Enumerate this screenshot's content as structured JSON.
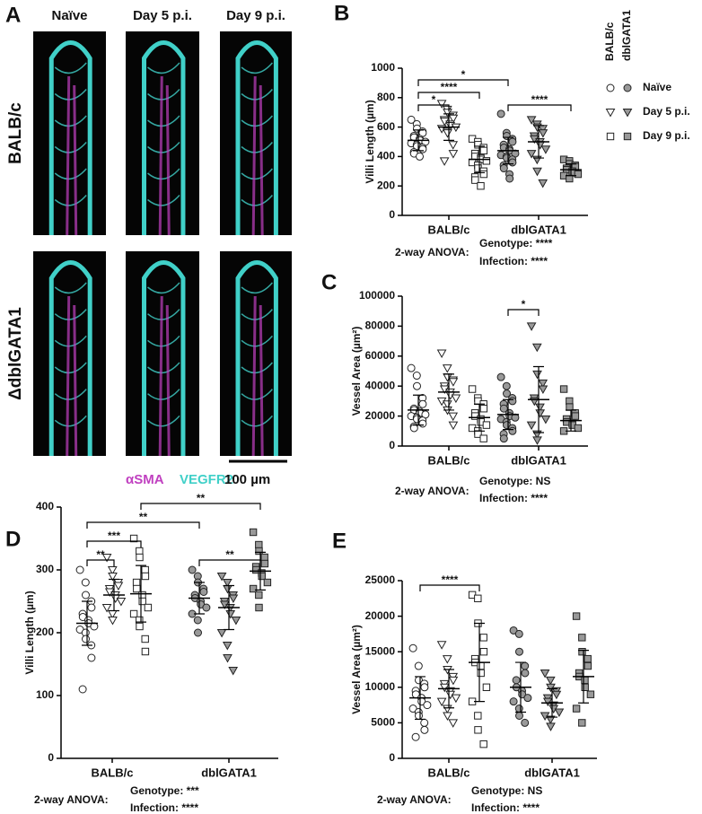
{
  "image_panel": {
    "letter": "A",
    "columns": [
      "Naïve",
      "Day 5 p.i.",
      "Day 9 p.i."
    ],
    "rows": [
      "BALB/c",
      "ΔdblGATA1"
    ],
    "stains": [
      {
        "name": "αSMA",
        "color": "#c040c0"
      },
      {
        "name": "VEGFR2",
        "color": "#40d0c8"
      }
    ],
    "scale_bar": "100 µm"
  },
  "chart_data": [
    {
      "type": "scatter",
      "panel": "B",
      "y_label": "Villi Length (µm)",
      "categories": [
        "BALB/c",
        "dblGATA1"
      ],
      "category_fills": [
        "#ffffff",
        "#999999"
      ],
      "ylim": [
        0,
        1000
      ],
      "yticks": [
        0,
        200,
        400,
        600,
        800,
        1000
      ],
      "legend": {
        "headers": [
          "BALB/c",
          "dblGATA1"
        ]
      },
      "series": [
        {
          "name": "Naïve",
          "marker": "circle",
          "values": [
            [
              650,
              620,
              590,
              570,
              560,
              540,
              530,
              520,
              510,
              500,
              490,
              480,
              470,
              460,
              450,
              430,
              420,
              400
            ],
            [
              690,
              560,
              540,
              520,
              500,
              480,
              460,
              450,
              440,
              420,
              410,
              400,
              390,
              380,
              360,
              340,
              320,
              280,
              250
            ]
          ],
          "mean": [
            510,
            440
          ],
          "sd": [
            70,
            90
          ]
        },
        {
          "name": "Day 5 p.i.",
          "marker": "triangle",
          "values": [
            [
              760,
              720,
              700,
              680,
              660,
              650,
              640,
              620,
              610,
              600,
              590,
              570,
              560,
              480,
              420,
              370
            ],
            [
              650,
              620,
              600,
              590,
              560,
              540,
              520,
              500,
              480,
              450,
              420,
              380,
              300,
              220
            ]
          ],
          "mean": [
            600,
            500
          ],
          "sd": [
            90,
            110
          ]
        },
        {
          "name": "Day 9 p.i.",
          "marker": "square",
          "values": [
            [
              520,
              500,
              480,
              460,
              440,
              420,
              400,
              390,
              380,
              370,
              360,
              340,
              320,
              300,
              280,
              260,
              240,
              200
            ],
            [
              380,
              370,
              350,
              340,
              330,
              320,
              310,
              300,
              290,
              280,
              270,
              250
            ]
          ],
          "mean": [
            380,
            310
          ],
          "sd": [
            90,
            40
          ]
        }
      ],
      "brackets": [
        {
          "from": 0,
          "to": 1,
          "label": "*"
        },
        {
          "from": 0,
          "to": 2,
          "label": "****"
        },
        {
          "from": 3,
          "to": 5,
          "label": "****"
        },
        {
          "from": 0,
          "to": 3,
          "label": "*"
        }
      ],
      "anova": {
        "label": "2-way ANOVA:",
        "lines": [
          "Genotype: ****",
          "Infection: ****"
        ]
      }
    },
    {
      "type": "scatter",
      "panel": "C",
      "y_label": "Vessel Area (µm²)",
      "categories": [
        "BALB/c",
        "dblGATA1"
      ],
      "category_fills": [
        "#ffffff",
        "#999999"
      ],
      "ylim": [
        0,
        100000
      ],
      "yticks": [
        0,
        20000,
        40000,
        60000,
        80000,
        100000
      ],
      "series": [
        {
          "marker": "circle",
          "values": [
            [
              52000,
              47000,
              40000,
              32000,
              28000,
              25000,
              24000,
              23000,
              22000,
              21000,
              20000,
              19000,
              18000,
              17000,
              15000,
              13000,
              12000
            ],
            [
              46000,
              40000,
              35000,
              32000,
              30000,
              28000,
              25000,
              22000,
              20000,
              19000,
              18000,
              16000,
              14000,
              12000,
              10000,
              8000,
              5000
            ]
          ],
          "mean": [
            24000,
            21000
          ],
          "sd": [
            10000,
            10000
          ]
        },
        {
          "marker": "triangle",
          "values": [
            [
              62000,
              52000,
              46000,
              44000,
              43000,
              40000,
              38000,
              36000,
              34000,
              32000,
              30000,
              28000,
              24000,
              20000,
              14000
            ],
            [
              80000,
              66000,
              48000,
              42000,
              38000,
              32000,
              30000,
              26000,
              22000,
              18000,
              14000,
              8000,
              4000
            ]
          ],
          "mean": [
            36000,
            31000
          ],
          "sd": [
            12000,
            22000
          ]
        },
        {
          "marker": "square",
          "values": [
            [
              38000,
              32000,
              30000,
              28000,
              25000,
              22000,
              20000,
              18000,
              16000,
              14000,
              12000,
              10000,
              8000,
              5000
            ],
            [
              38000,
              30000,
              26000,
              22000,
              20000,
              18000,
              16000,
              15000,
              14000,
              12000,
              10000
            ]
          ],
          "mean": [
            19000,
            17000
          ],
          "sd": [
            9000,
            7000
          ]
        }
      ],
      "brackets": [
        {
          "from": 3,
          "to": 4,
          "label": "*"
        }
      ],
      "anova": {
        "label": "2-way ANOVA:",
        "lines": [
          "Genotype: NS",
          "Infection: ****"
        ]
      }
    },
    {
      "type": "scatter",
      "panel": "D",
      "y_label": "Villi Length (µm)",
      "categories": [
        "BALB/c",
        "dblGATA1"
      ],
      "category_fills": [
        "#ffffff",
        "#999999"
      ],
      "ylim": [
        0,
        400
      ],
      "yticks": [
        0,
        100,
        200,
        300,
        400
      ],
      "series": [
        {
          "marker": "circle",
          "values": [
            [
              300,
              280,
              260,
              250,
              240,
              230,
              225,
              220,
              215,
              210,
              205,
              200,
              190,
              180,
              160,
              110
            ],
            [
              300,
              290,
              280,
              270,
              265,
              260,
              255,
              250,
              245,
              240,
              230,
              220,
              200
            ]
          ],
          "mean": [
            215,
            255
          ],
          "sd": [
            35,
            25
          ]
        },
        {
          "marker": "triangle",
          "values": [
            [
              320,
              300,
              290,
              280,
              275,
              270,
              265,
              260,
              255,
              250,
              240,
              230,
              220
            ],
            [
              290,
              280,
              270,
              260,
              255,
              250,
              245,
              240,
              230,
              220,
              200,
              180,
              160,
              140
            ]
          ],
          "mean": [
            260,
            240
          ],
          "sd": [
            25,
            35
          ]
        },
        {
          "marker": "square",
          "values": [
            [
              350,
              330,
              320,
              300,
              290,
              280,
              270,
              260,
              250,
              240,
              230,
              220,
              210,
              190,
              170
            ],
            [
              360,
              340,
              330,
              320,
              310,
              305,
              300,
              295,
              290,
              280,
              270,
              260,
              240
            ]
          ],
          "mean": [
            262,
            298
          ],
          "sd": [
            45,
            30
          ]
        }
      ],
      "brackets": [
        {
          "from": 0,
          "to": 1,
          "label": "**"
        },
        {
          "from": 0,
          "to": 2,
          "label": "***"
        },
        {
          "from": 3,
          "to": 5,
          "label": "**"
        },
        {
          "from": 0,
          "to": 3,
          "label": "**"
        },
        {
          "from": 2,
          "to": 5,
          "label": "**"
        }
      ],
      "anova": {
        "label": "2-way ANOVA:",
        "lines": [
          "Genotype: ***",
          "Infection: ****"
        ]
      }
    },
    {
      "type": "scatter",
      "panel": "E",
      "y_label": "Vessel Area (µm²)",
      "categories": [
        "BALB/c",
        "dblGATA1"
      ],
      "category_fills": [
        "#ffffff",
        "#999999"
      ],
      "ylim": [
        0,
        25000
      ],
      "yticks": [
        0,
        5000,
        10000,
        15000,
        20000,
        25000
      ],
      "series": [
        {
          "marker": "circle",
          "values": [
            [
              15500,
              13000,
              11000,
              10500,
              10000,
              9500,
              9000,
              8500,
              8000,
              7500,
              7000,
              6500,
              6000,
              5000,
              4000,
              3000
            ],
            [
              18000,
              17500,
              15000,
              13000,
              12000,
              11000,
              10000,
              9500,
              9000,
              8500,
              8000,
              7000,
              6000,
              5000
            ]
          ],
          "mean": [
            8500,
            10000
          ],
          "sd": [
            3000,
            3500
          ]
        },
        {
          "marker": "triangle",
          "values": [
            [
              16000,
              14000,
              12500,
              11500,
              11000,
              10500,
              10000,
              9500,
              9000,
              8500,
              8000,
              7000,
              6000,
              5000
            ],
            [
              12000,
              11000,
              10000,
              9500,
              9000,
              8500,
              8000,
              7500,
              7000,
              6500,
              6000,
              5500,
              4500
            ]
          ],
          "mean": [
            9800,
            7800
          ],
          "sd": [
            2700,
            2000
          ]
        },
        {
          "marker": "square",
          "values": [
            [
              23000,
              22500,
              19000,
              17000,
              15000,
              14000,
              13500,
              13000,
              12000,
              10000,
              8000,
              6000,
              4000,
              2000
            ],
            [
              20000,
              17000,
              15000,
              14000,
              13000,
              12000,
              11500,
              11000,
              10000,
              9000,
              7000,
              5000
            ]
          ],
          "mean": [
            13500,
            11500
          ],
          "sd": [
            5500,
            3700
          ]
        }
      ],
      "brackets": [
        {
          "from": 0,
          "to": 2,
          "label": "****"
        }
      ],
      "anova": {
        "label": "2-way ANOVA:",
        "lines": [
          "Genotype: NS",
          "Infection: ****"
        ]
      }
    }
  ]
}
